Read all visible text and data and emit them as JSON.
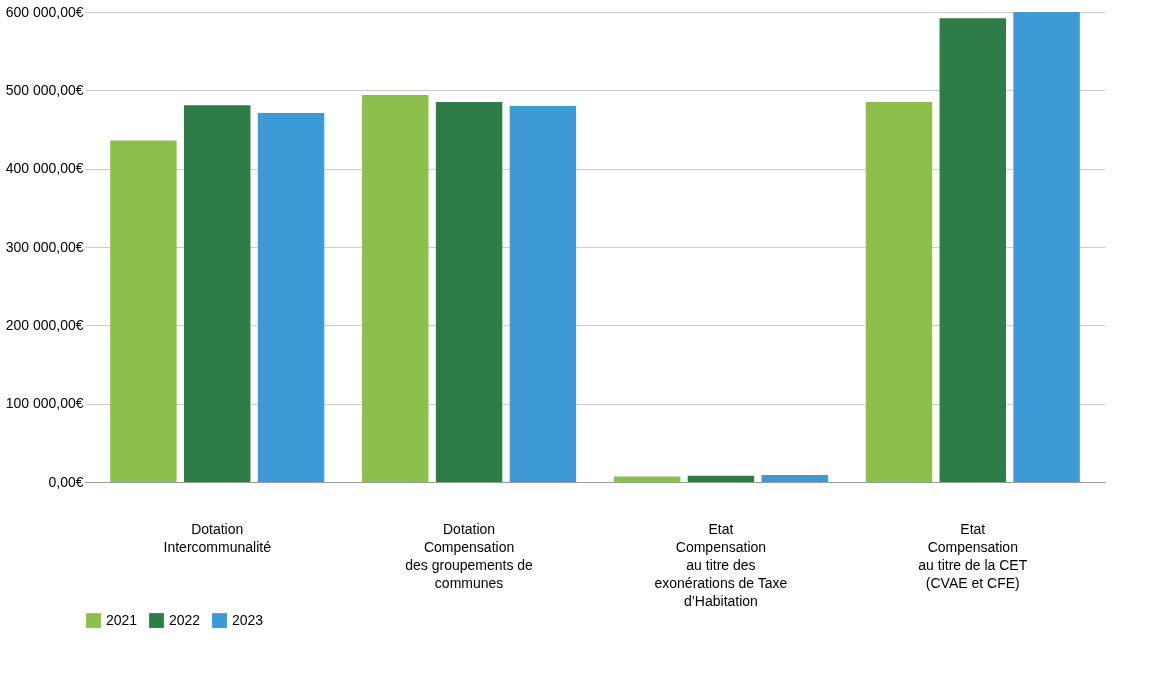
{
  "chart_data": {
    "type": "bar",
    "categories": [
      "Dotation\nIntercommunalité",
      "Dotation\nCompensation\ndes groupements de\ncommunes",
      "Etat\nCompensation\nau titre des\nexonérations de Taxe\nd’Habitation",
      "Etat\nCompensation\nau titre de la CET\n(CVAE et CFE)"
    ],
    "series": [
      {
        "name": "2021",
        "color": "#8dc04a",
        "values": [
          436000,
          494000,
          7000,
          485000
        ]
      },
      {
        "name": "2022",
        "color": "#2e7d46",
        "values": [
          481000,
          485000,
          8000,
          592000
        ]
      },
      {
        "name": "2023",
        "color": "#3d9ad6",
        "values": [
          471000,
          480000,
          9000,
          600000
        ]
      }
    ],
    "ylim": [
      0,
      600000
    ],
    "yticks": [
      {
        "value": 0,
        "label": "0,00€"
      },
      {
        "value": 100000,
        "label": "100 000,00€"
      },
      {
        "value": 200000,
        "label": "200 000,00€"
      },
      {
        "value": 300000,
        "label": "300 000,00€"
      },
      {
        "value": 400000,
        "label": "400 000,00€"
      },
      {
        "value": 500000,
        "label": "500 000,00€"
      },
      {
        "value": 600000,
        "label": "600 000,00€"
      }
    ],
    "grid": "y",
    "legend": "bottom left"
  }
}
